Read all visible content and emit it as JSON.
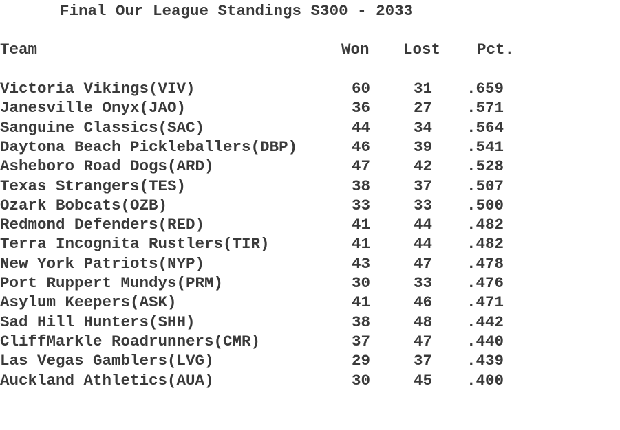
{
  "title": "Final Our League Standings S300 - 2033",
  "headers": {
    "team": "Team",
    "won": "Won",
    "lost": "Lost",
    "pct": "Pct."
  },
  "rows": [
    {
      "team": "Victoria Vikings(VIV)",
      "won": "60",
      "lost": "31",
      "pct": ".659"
    },
    {
      "team": "Janesville Onyx(JAO)",
      "won": "36",
      "lost": "27",
      "pct": ".571"
    },
    {
      "team": "Sanguine Classics(SAC)",
      "won": "44",
      "lost": "34",
      "pct": ".564"
    },
    {
      "team": "Daytona Beach Pickleballers(DBP)",
      "won": "46",
      "lost": "39",
      "pct": ".541"
    },
    {
      "team": "Asheboro Road Dogs(ARD)",
      "won": "47",
      "lost": "42",
      "pct": ".528"
    },
    {
      "team": "Texas Strangers(TES)",
      "won": "38",
      "lost": "37",
      "pct": ".507"
    },
    {
      "team": "Ozark Bobcats(OZB)",
      "won": "33",
      "lost": "33",
      "pct": ".500"
    },
    {
      "team": "Redmond Defenders(RED)",
      "won": "41",
      "lost": "44",
      "pct": ".482"
    },
    {
      "team": "Terra Incognita Rustlers(TIR)",
      "won": "41",
      "lost": "44",
      "pct": ".482"
    },
    {
      "team": "New York Patriots(NYP)",
      "won": "43",
      "lost": "47",
      "pct": ".478"
    },
    {
      "team": "Port Ruppert Mundys(PRM)",
      "won": "30",
      "lost": "33",
      "pct": ".476"
    },
    {
      "team": "Asylum Keepers(ASK)",
      "won": "41",
      "lost": "46",
      "pct": ".471"
    },
    {
      "team": "Sad Hill Hunters(SHH)",
      "won": "38",
      "lost": "48",
      "pct": ".442"
    },
    {
      "team": "CliffMarkle Roadrunners(CMR)",
      "won": "37",
      "lost": "47",
      "pct": ".440"
    },
    {
      "team": "Las Vegas Gamblers(LVG)",
      "won": "29",
      "lost": "37",
      "pct": ".439"
    },
    {
      "team": "Auckland Athletics(AUA)",
      "won": "30",
      "lost": "45",
      "pct": ".400"
    }
  ]
}
